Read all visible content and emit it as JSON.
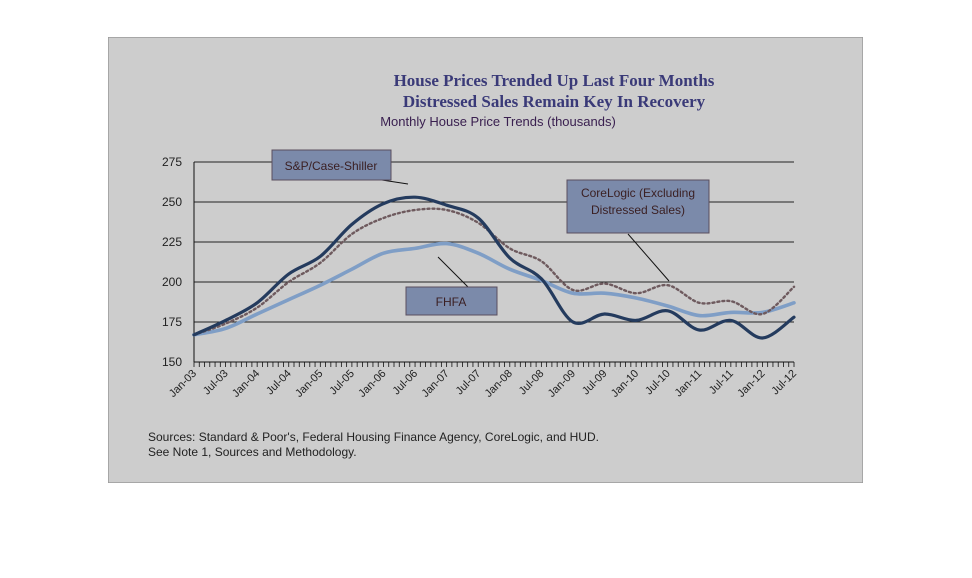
{
  "colors": {
    "background": "#cdcdcd",
    "frame": "#9a9a9a",
    "sp_case_shiller": "#243b5e",
    "corelogic": "#6e5a5e",
    "fhfa": "#7f9ec6",
    "callout_fill": "#7b8aaa",
    "callout_border": "#5a4e5e",
    "callout_text": "#3a1f22"
  },
  "header": {
    "title_line1": "House Prices Trended Up Last Four Months",
    "title_line2": "Distressed Sales Remain Key In Recovery",
    "subtitle": "Monthly House Price Trends (thousands)"
  },
  "callouts": {
    "sp": "S&P/Case-Shiller",
    "corelogic_line1": "CoreLogic (Excluding",
    "corelogic_line2": "Distressed Sales)",
    "fhfa": "FHFA"
  },
  "footer": {
    "sources": "Sources:  Standard & Poor's, Federal Housing Finance Agency, CoreLogic, and HUD.",
    "note": "See Note 1, Sources and Methodology."
  },
  "chart_data": {
    "type": "line",
    "title": "House Prices Trended Up Last Four Months",
    "subtitle": "Monthly House Price Trends (thousands)",
    "x_tick_labels": [
      "Jan-03",
      "Jul-03",
      "Jan-04",
      "Jul-04",
      "Jan-05",
      "Jul-05",
      "Jan-06",
      "Jul-06",
      "Jan-07",
      "Jul-07",
      "Jan-08",
      "Jul-08",
      "Jan-09",
      "Jul-09",
      "Jan-10",
      "Jul-10",
      "Jan-11",
      "Jul-11",
      "Jan-12",
      "Jul-12"
    ],
    "y_ticks": [
      150,
      175,
      200,
      225,
      250,
      275
    ],
    "ylim": [
      150,
      275
    ],
    "grid": "horizontal",
    "x": [
      "Jan-03",
      "Jul-03",
      "Jan-04",
      "Jul-04",
      "Jan-05",
      "Jul-05",
      "Jan-06",
      "Jul-06",
      "Jan-07",
      "Jul-07",
      "Jan-08",
      "Jul-08",
      "Jan-09",
      "Jul-09",
      "Jan-10",
      "Jul-10",
      "Jan-11",
      "Jul-11",
      "Jan-12",
      "Jul-12"
    ],
    "series": [
      {
        "name": "S&P/Case-Shiller",
        "style": "solid-dark",
        "values": [
          167,
          176,
          187,
          205,
          216,
          236,
          249,
          253,
          248,
          240,
          215,
          202,
          175,
          180,
          176,
          182,
          170,
          176,
          165,
          178
        ]
      },
      {
        "name": "CoreLogic (Excluding Distressed Sales)",
        "style": "dotted",
        "values": [
          167,
          174,
          184,
          200,
          212,
          230,
          240,
          245,
          245,
          237,
          221,
          213,
          195,
          199,
          193,
          198,
          187,
          188,
          180,
          197
        ]
      },
      {
        "name": "FHFA",
        "style": "solid-light",
        "values": [
          167,
          171,
          180,
          189,
          198,
          208,
          218,
          221,
          224,
          218,
          208,
          201,
          193,
          193,
          190,
          185,
          179,
          181,
          181,
          187
        ]
      }
    ]
  }
}
